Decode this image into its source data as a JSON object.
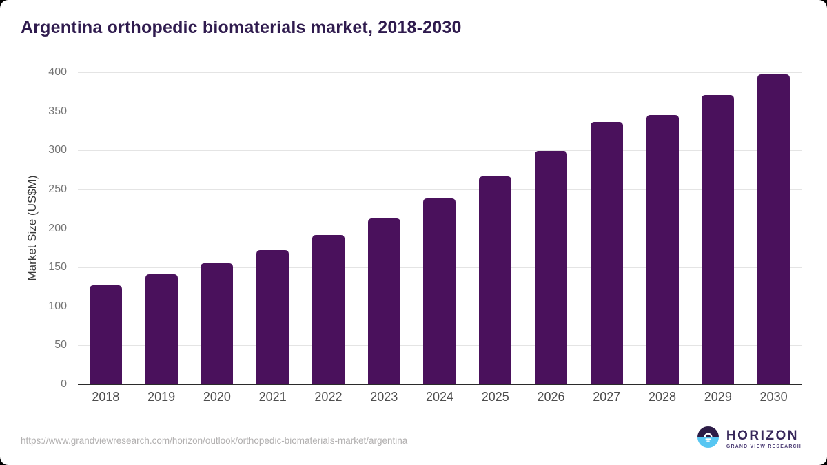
{
  "chart_data": {
    "type": "bar",
    "title": "Argentina orthopedic biomaterials market, 2018-2030",
    "categories": [
      "2018",
      "2019",
      "2020",
      "2021",
      "2022",
      "2023",
      "2024",
      "2025",
      "2026",
      "2027",
      "2028",
      "2029",
      "2030"
    ],
    "values": [
      127,
      141,
      155,
      172,
      192,
      213,
      238,
      267,
      299,
      336,
      345,
      371,
      397
    ],
    "xlabel": "",
    "ylabel": "Market Size (US$M)",
    "ylim": [
      0,
      400
    ],
    "y_ticks": [
      0,
      50,
      100,
      150,
      200,
      250,
      300,
      350,
      400
    ],
    "grid": "horizontal",
    "legend": "none",
    "bar_color": "#4a115c"
  },
  "footer": {
    "source_url": "https://www.grandviewresearch.com/horizon/outlook/orthopedic-biomaterials-market/argentina",
    "logo": {
      "brand": "HORIZON",
      "sub_brand": "GRAND VIEW RESEARCH"
    }
  },
  "colors": {
    "title": "#2f1b4e",
    "bar": "#4a115c",
    "gridline": "#e4e4e4",
    "axis_line": "#2b2b2b",
    "tick_label": "#757575",
    "x_label": "#4d4d4d",
    "footer_text": "#b2b0b0",
    "logo_dark": "#2d1c47",
    "logo_blue": "#57c6f2"
  }
}
